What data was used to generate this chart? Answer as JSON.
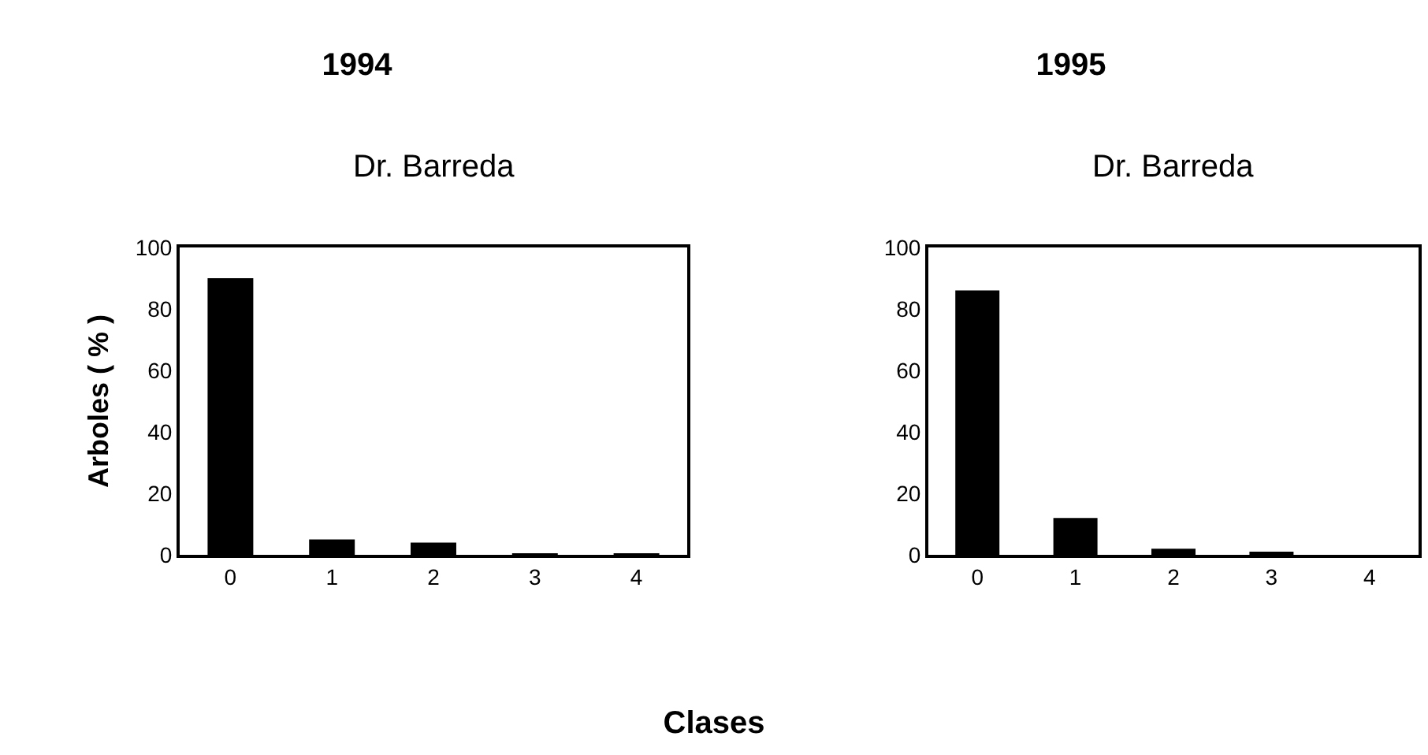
{
  "chart_data": [
    {
      "type": "bar",
      "title": "1994",
      "subtitle": "Dr. Barreda",
      "ylabel": "Arboles ( % )",
      "xlabel": "Clases",
      "categories": [
        "0",
        "1",
        "2",
        "3",
        "4"
      ],
      "values": [
        90,
        5,
        4,
        0.5,
        0.5
      ],
      "color": "#000000",
      "ylim": [
        0,
        100
      ],
      "yticks": [
        0,
        20,
        40,
        60,
        80,
        100
      ],
      "grid": false
    },
    {
      "type": "bar",
      "title": "1995",
      "subtitle": "Dr. Barreda",
      "categories": [
        "0",
        "1",
        "2",
        "3",
        "4"
      ],
      "values": [
        86,
        12,
        2,
        1,
        0
      ],
      "color": "#000000",
      "ylim": [
        0,
        100
      ],
      "yticks": [
        0,
        20,
        40,
        60,
        80,
        100
      ],
      "grid": false
    }
  ]
}
